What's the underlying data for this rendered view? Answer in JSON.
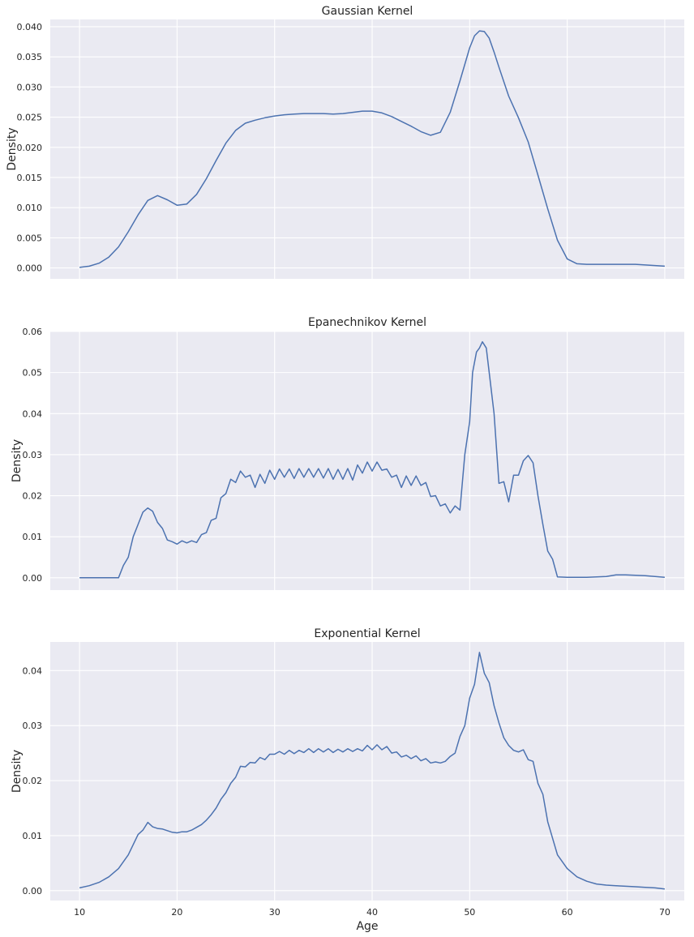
{
  "chart_data": [
    {
      "type": "line",
      "title": "Gaussian Kernel",
      "xlabel": "",
      "ylabel": "Density",
      "xlim": [
        7,
        72
      ],
      "ylim": [
        -0.0018,
        0.0412
      ],
      "xticks": [
        10,
        20,
        30,
        40,
        50,
        60,
        70
      ],
      "xtick_labels_visible": false,
      "yticks": [
        0.0,
        0.005,
        0.01,
        0.015,
        0.02,
        0.025,
        0.03,
        0.035,
        0.04
      ],
      "ytick_labels": [
        "0.000",
        "0.005",
        "0.010",
        "0.015",
        "0.020",
        "0.025",
        "0.030",
        "0.035",
        "0.040"
      ],
      "grid": true,
      "series": [
        {
          "x": [
            10,
            11,
            12,
            13,
            14,
            15,
            16,
            17,
            18,
            19,
            20,
            21,
            22,
            23,
            24,
            25,
            26,
            27,
            28,
            29,
            30,
            31,
            32,
            33,
            34,
            35,
            36,
            37,
            38,
            39,
            40,
            41,
            42,
            43,
            44,
            45,
            46,
            47,
            48,
            49,
            50,
            50.5,
            51,
            51.5,
            52,
            52.5,
            53,
            54,
            55,
            56,
            57,
            58,
            59,
            60,
            61,
            62,
            63,
            64,
            65,
            66,
            67,
            68,
            69,
            70
          ],
          "y": [
            0.0001,
            0.0003,
            0.0008,
            0.0018,
            0.0035,
            0.006,
            0.0088,
            0.0112,
            0.012,
            0.0113,
            0.0104,
            0.0106,
            0.0122,
            0.0148,
            0.0178,
            0.0207,
            0.0228,
            0.024,
            0.0245,
            0.0249,
            0.0252,
            0.0254,
            0.0255,
            0.0256,
            0.0256,
            0.0256,
            0.0255,
            0.0256,
            0.0258,
            0.026,
            0.026,
            0.0257,
            0.0251,
            0.0243,
            0.0235,
            0.0226,
            0.022,
            0.0225,
            0.0258,
            0.031,
            0.0365,
            0.0385,
            0.0393,
            0.0392,
            0.0381,
            0.0358,
            0.0333,
            0.0285,
            0.0249,
            0.0209,
            0.0154,
            0.0098,
            0.0046,
            0.0015,
            0.0007,
            0.0006,
            0.0006,
            0.0006,
            0.0006,
            0.0006,
            0.0006,
            0.0005,
            0.0004,
            0.0003
          ]
        }
      ]
    },
    {
      "type": "line",
      "title": "Epanechnikov Kernel",
      "xlabel": "",
      "ylabel": "Density",
      "xlim": [
        7,
        72
      ],
      "ylim": [
        -0.003,
        0.06
      ],
      "xticks": [
        10,
        20,
        30,
        40,
        50,
        60,
        70
      ],
      "xtick_labels_visible": false,
      "yticks": [
        0.0,
        0.01,
        0.02,
        0.03,
        0.04,
        0.05,
        0.06
      ],
      "ytick_labels": [
        "0.00",
        "0.01",
        "0.02",
        "0.03",
        "0.04",
        "0.05",
        "0.06"
      ],
      "grid": true,
      "series": [
        {
          "x": [
            10,
            12,
            14,
            14.5,
            15,
            15.5,
            16,
            16.5,
            17,
            17.5,
            18,
            18.5,
            19,
            19.5,
            20,
            20.5,
            21,
            21.5,
            22,
            22.5,
            23,
            23.5,
            24,
            24.5,
            25,
            25.5,
            26,
            26.5,
            27,
            27.5,
            28,
            28.5,
            29,
            29.5,
            30,
            30.5,
            31,
            31.5,
            32,
            32.5,
            33,
            33.5,
            34,
            34.5,
            35,
            35.5,
            36,
            36.5,
            37,
            37.5,
            38,
            38.5,
            39,
            39.5,
            40,
            40.5,
            41,
            41.5,
            42,
            42.5,
            43,
            43.5,
            44,
            44.5,
            45,
            45.5,
            46,
            46.5,
            47,
            47.5,
            48,
            48.5,
            49,
            49.5,
            50,
            50.3,
            50.7,
            51,
            51.3,
            51.7,
            52,
            52.5,
            53,
            53.5,
            54,
            54.5,
            55,
            55.5,
            56,
            56.5,
            57,
            57.5,
            58,
            58.5,
            59,
            60,
            62,
            64,
            65,
            66,
            68,
            70
          ],
          "y": [
            0.0,
            0.0,
            0.0,
            0.003,
            0.005,
            0.01,
            0.013,
            0.016,
            0.017,
            0.0162,
            0.0135,
            0.012,
            0.0092,
            0.0088,
            0.0082,
            0.009,
            0.0085,
            0.009,
            0.0086,
            0.0105,
            0.011,
            0.014,
            0.0145,
            0.0195,
            0.0205,
            0.024,
            0.0232,
            0.026,
            0.0245,
            0.025,
            0.022,
            0.0252,
            0.023,
            0.0262,
            0.024,
            0.0265,
            0.0245,
            0.0265,
            0.0242,
            0.0266,
            0.0245,
            0.0266,
            0.0245,
            0.0266,
            0.0243,
            0.0266,
            0.024,
            0.0264,
            0.024,
            0.0266,
            0.0238,
            0.0275,
            0.0255,
            0.0282,
            0.026,
            0.0282,
            0.0262,
            0.0265,
            0.0245,
            0.025,
            0.022,
            0.0248,
            0.0225,
            0.0248,
            0.0225,
            0.0232,
            0.0198,
            0.02,
            0.0175,
            0.018,
            0.0158,
            0.0175,
            0.0165,
            0.03,
            0.038,
            0.05,
            0.055,
            0.056,
            0.0575,
            0.056,
            0.05,
            0.04,
            0.023,
            0.0234,
            0.0185,
            0.025,
            0.025,
            0.0285,
            0.0298,
            0.028,
            0.02,
            0.013,
            0.0065,
            0.0045,
            0.0002,
            0.0001,
            0.0001,
            0.0003,
            0.0007,
            0.0007,
            0.0005,
            0.0001
          ]
        }
      ]
    },
    {
      "type": "line",
      "title": "Exponential Kernel",
      "xlabel": "Age",
      "ylabel": "Density",
      "xlim": [
        7,
        72
      ],
      "ylim": [
        -0.0018,
        0.0452
      ],
      "xticks": [
        10,
        20,
        30,
        40,
        50,
        60,
        70
      ],
      "xtick_labels": [
        "10",
        "20",
        "30",
        "40",
        "50",
        "60",
        "70"
      ],
      "xtick_labels_visible": true,
      "yticks": [
        0.0,
        0.01,
        0.02,
        0.03,
        0.04
      ],
      "ytick_labels": [
        "0.00",
        "0.01",
        "0.02",
        "0.03",
        "0.04"
      ],
      "grid": true,
      "series": [
        {
          "x": [
            10,
            11,
            12,
            13,
            14,
            15,
            16,
            16.5,
            17,
            17.5,
            18,
            18.5,
            19,
            19.5,
            20,
            20.5,
            21,
            21.5,
            22,
            22.5,
            23,
            23.5,
            24,
            24.5,
            25,
            25.5,
            26,
            26.5,
            27,
            27.5,
            28,
            28.5,
            29,
            29.5,
            30,
            30.5,
            31,
            31.5,
            32,
            32.5,
            33,
            33.5,
            34,
            34.5,
            35,
            35.5,
            36,
            36.5,
            37,
            37.5,
            38,
            38.5,
            39,
            39.5,
            40,
            40.5,
            41,
            41.5,
            42,
            42.5,
            43,
            43.5,
            44,
            44.5,
            45,
            45.5,
            46,
            46.5,
            47,
            47.5,
            48,
            48.5,
            49,
            49.5,
            50,
            50.5,
            51,
            51.5,
            52,
            52.5,
            53,
            53.5,
            54,
            54.5,
            55,
            55.5,
            56,
            56.5,
            57,
            57.5,
            58,
            59,
            60,
            61,
            62,
            63,
            64,
            65,
            66,
            67,
            68,
            69,
            70
          ],
          "y": [
            0.0005,
            0.0009,
            0.0015,
            0.0025,
            0.004,
            0.0065,
            0.0102,
            0.011,
            0.0124,
            0.0116,
            0.0113,
            0.0112,
            0.0109,
            0.0106,
            0.0105,
            0.0107,
            0.0107,
            0.011,
            0.0115,
            0.012,
            0.0128,
            0.0138,
            0.015,
            0.0166,
            0.0178,
            0.0195,
            0.0206,
            0.0226,
            0.0225,
            0.0233,
            0.0232,
            0.0242,
            0.0238,
            0.0248,
            0.0248,
            0.0253,
            0.0248,
            0.0255,
            0.0249,
            0.0255,
            0.0251,
            0.0258,
            0.0251,
            0.0258,
            0.0252,
            0.0258,
            0.0251,
            0.0257,
            0.0252,
            0.0258,
            0.0253,
            0.0258,
            0.0254,
            0.0264,
            0.0256,
            0.0265,
            0.0256,
            0.0262,
            0.025,
            0.0252,
            0.0243,
            0.0246,
            0.024,
            0.0245,
            0.0236,
            0.024,
            0.0232,
            0.0234,
            0.0232,
            0.0235,
            0.0244,
            0.025,
            0.028,
            0.03,
            0.035,
            0.0375,
            0.0433,
            0.0395,
            0.0378,
            0.0336,
            0.0305,
            0.0278,
            0.0264,
            0.0255,
            0.0252,
            0.0256,
            0.0238,
            0.0235,
            0.0195,
            0.0175,
            0.0125,
            0.0065,
            0.004,
            0.0025,
            0.0017,
            0.0012,
            0.001,
            0.0009,
            0.0008,
            0.0007,
            0.0006,
            0.0005,
            0.0003
          ]
        }
      ]
    }
  ]
}
